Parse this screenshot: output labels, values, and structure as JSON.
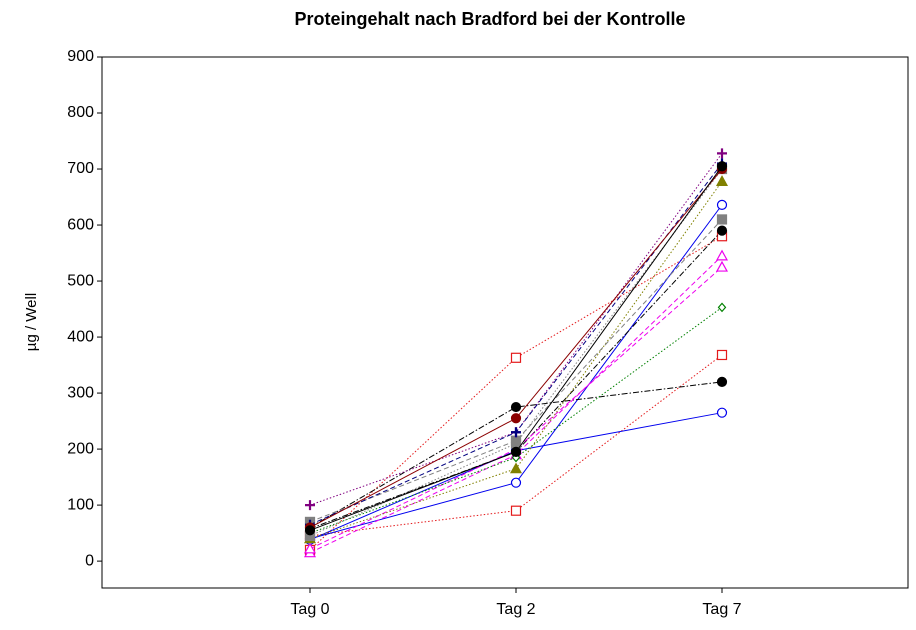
{
  "chart_data": {
    "type": "line",
    "title": "Proteingehalt nach Bradford bei der Kontrolle",
    "ylabel": "µg / Well",
    "categories": [
      "Tag 0",
      "Tag 2",
      "Tag 7"
    ],
    "ylim": [
      -48,
      900
    ],
    "yticks": [
      0,
      100,
      200,
      300,
      400,
      500,
      600,
      700,
      800,
      900
    ],
    "grid": false,
    "series": [
      {
        "color": "#e41a1c",
        "dash": "dotted",
        "marker": "square-open",
        "values": [
          20,
          363,
          580
        ]
      },
      {
        "color": "#e41a1c",
        "dash": "dotted",
        "marker": "square-open",
        "values": [
          45,
          90,
          368
        ]
      },
      {
        "color": "#0000ee",
        "dash": "solid",
        "marker": "circle-open",
        "values": [
          40,
          140,
          636
        ]
      },
      {
        "color": "#0000ee",
        "dash": "solid",
        "marker": "circle-open",
        "values": [
          38,
          197,
          265
        ]
      },
      {
        "color": "#000000",
        "dash": "dashdot",
        "marker": "circle-filled",
        "values": [
          60,
          275,
          320
        ]
      },
      {
        "color": "#000000",
        "dash": "dashdot",
        "marker": "circle-filled",
        "values": [
          58,
          195,
          590
        ]
      },
      {
        "color": "#ee00ee",
        "dash": "dashed",
        "marker": "triangle-open",
        "values": [
          15,
          190,
          545
        ]
      },
      {
        "color": "#ee00ee",
        "dash": "dashed",
        "marker": "triangle-open",
        "values": [
          22,
          200,
          525
        ]
      },
      {
        "color": "#008000",
        "dash": "dotted",
        "marker": "diamond-open",
        "values": [
          50,
          185,
          453
        ]
      },
      {
        "color": "#808000",
        "dash": "dotted",
        "marker": "triangle-filled",
        "values": [
          40,
          165,
          678
        ]
      },
      {
        "color": "#808080",
        "dash": "dashed",
        "marker": "square-filled",
        "values": [
          70,
          215,
          610
        ]
      },
      {
        "color": "#808080",
        "dash": "dotted",
        "marker": "square-filled",
        "values": [
          45,
          210,
          700
        ]
      },
      {
        "color": "#800080",
        "dash": "dotted",
        "marker": "plus",
        "values": [
          100,
          230,
          728
        ]
      },
      {
        "color": "#000080",
        "dash": "dashed",
        "marker": "plus",
        "values": [
          65,
          230,
          710
        ]
      },
      {
        "color": "#8b0000",
        "dash": "solid",
        "marker": "circle-filled",
        "values": [
          60,
          255,
          700
        ]
      },
      {
        "color": "#000000",
        "dash": "solid",
        "marker": "circle-filled",
        "values": [
          55,
          195,
          705
        ]
      }
    ]
  }
}
